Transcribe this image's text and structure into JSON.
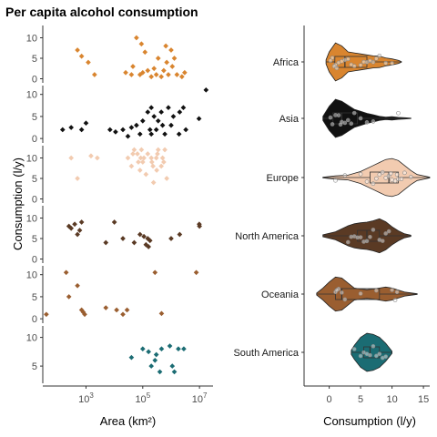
{
  "title": "Per capita alcohol consumption",
  "colors": {
    "Africa": "#D9852F",
    "Asia": "#111111",
    "Europe": "#F2CBB0",
    "North America": "#5A3A24",
    "Oceania": "#9A5E30",
    "South America": "#1B6C73"
  },
  "chart_data": [
    {
      "type": "scatter",
      "faceted_by": "continent",
      "ylabel": "Consumption (l/y)",
      "xlabel": "Area (km²)",
      "x_scale": "log10",
      "xlim": [
        30,
        30000000
      ],
      "x_ticks": [
        1000,
        100000,
        10000000
      ],
      "x_tick_labels": [
        {
          "base": "10",
          "exp": "3"
        },
        {
          "base": "10",
          "exp": "5"
        },
        {
          "base": "10",
          "exp": "7"
        }
      ],
      "panels": [
        {
          "name": "Africa",
          "ylim": [
            -1,
            13
          ],
          "y_ticks": [
            0,
            5,
            10
          ],
          "points": [
            [
              500,
              7
            ],
            [
              700,
              5.5
            ],
            [
              1200,
              4
            ],
            [
              2000,
              1
            ],
            [
              25000,
              1.5
            ],
            [
              45000,
              3
            ],
            [
              60000,
              10
            ],
            [
              80000,
              1
            ],
            [
              100000,
              1.5
            ],
            [
              120000,
              6.5
            ],
            [
              150000,
              2
            ],
            [
              200000,
              0.5
            ],
            [
              250000,
              2.5
            ],
            [
              300000,
              1
            ],
            [
              350000,
              5
            ],
            [
              450000,
              0.5
            ],
            [
              550000,
              2
            ],
            [
              650000,
              8
            ],
            [
              800000,
              1
            ],
            [
              1100000,
              3
            ],
            [
              1300000,
              5
            ],
            [
              1600000,
              1
            ],
            [
              2400000,
              0.5
            ],
            [
              3000000,
              1.5
            ],
            [
              1000000,
              7
            ],
            [
              700000,
              4
            ],
            [
              90000,
              8.5
            ],
            [
              40000,
              1
            ]
          ]
        },
        {
          "name": "Asia",
          "ylim": [
            -1,
            12
          ],
          "y_ticks": [
            0,
            5,
            10
          ],
          "points": [
            [
              150,
              2
            ],
            [
              300,
              2.5
            ],
            [
              700,
              2
            ],
            [
              1000,
              3.5
            ],
            [
              7000,
              2
            ],
            [
              11000,
              1.5
            ],
            [
              20000,
              2
            ],
            [
              30000,
              0.5
            ],
            [
              40000,
              2.5
            ],
            [
              60000,
              3
            ],
            [
              80000,
              1
            ],
            [
              100000,
              4
            ],
            [
              150000,
              6
            ],
            [
              180000,
              2
            ],
            [
              200000,
              1
            ],
            [
              250000,
              5
            ],
            [
              300000,
              2
            ],
            [
              350000,
              4
            ],
            [
              450000,
              6
            ],
            [
              500000,
              3
            ],
            [
              600000,
              1
            ],
            [
              800000,
              7
            ],
            [
              1000000,
              3
            ],
            [
              1200000,
              5
            ],
            [
              2000000,
              6
            ],
            [
              3300000,
              2
            ],
            [
              9600000,
              4.5
            ],
            [
              2700000,
              7
            ],
            [
              1900000,
              1
            ],
            [
              17000000,
              11
            ],
            [
              200000,
              7
            ]
          ]
        },
        {
          "name": "Europe",
          "ylim": [
            -1,
            13
          ],
          "y_ticks": [
            0,
            5,
            10
          ],
          "points": [
            [
              300,
              10
            ],
            [
              500,
              5
            ],
            [
              1500,
              10.5
            ],
            [
              2500,
              10
            ],
            [
              30000,
              10
            ],
            [
              40000,
              8
            ],
            [
              45000,
              11
            ],
            [
              50000,
              12
            ],
            [
              65000,
              11
            ],
            [
              70000,
              9
            ],
            [
              80000,
              7
            ],
            [
              85000,
              10
            ],
            [
              90000,
              12
            ],
            [
              100000,
              9
            ],
            [
              110000,
              10
            ],
            [
              130000,
              6
            ],
            [
              150000,
              11
            ],
            [
              200000,
              10
            ],
            [
              210000,
              9
            ],
            [
              230000,
              8
            ],
            [
              240000,
              4
            ],
            [
              300000,
              10
            ],
            [
              310000,
              7
            ],
            [
              330000,
              11
            ],
            [
              350000,
              12
            ],
            [
              450000,
              8
            ],
            [
              500000,
              10
            ],
            [
              550000,
              9
            ],
            [
              600000,
              12
            ],
            [
              700000,
              5
            ]
          ]
        },
        {
          "name": "North America",
          "ylim": [
            -1,
            13
          ],
          "y_ticks": [
            0,
            5,
            10
          ],
          "points": [
            [
              250,
              8
            ],
            [
              300,
              7.5
            ],
            [
              400,
              8.5
            ],
            [
              500,
              6
            ],
            [
              600,
              7
            ],
            [
              700,
              9
            ],
            [
              5000,
              4
            ],
            [
              10000,
              9
            ],
            [
              20000,
              5
            ],
            [
              50000,
              4
            ],
            [
              80000,
              6
            ],
            [
              110000,
              5.5
            ],
            [
              130000,
              3.5
            ],
            [
              150000,
              5
            ],
            [
              160000,
              3
            ],
            [
              180000,
              4.5
            ],
            [
              1000000,
              5
            ],
            [
              2000000,
              6
            ],
            [
              9800000,
              8.5
            ],
            [
              10000000,
              8
            ]
          ]
        },
        {
          "name": "Oceania",
          "ylim": [
            -1,
            12
          ],
          "y_ticks": [
            0,
            5,
            10
          ],
          "points": [
            [
              40,
              1
            ],
            [
              200,
              10.5
            ],
            [
              250,
              5
            ],
            [
              500,
              7.5
            ],
            [
              700,
              2
            ],
            [
              800,
              1.5
            ],
            [
              900,
              1
            ],
            [
              5000,
              2.5
            ],
            [
              12000,
              2
            ],
            [
              20000,
              1
            ],
            [
              28000,
              2
            ],
            [
              270000,
              10.5
            ],
            [
              460000,
              1.2
            ],
            [
              7700000,
              10.5
            ]
          ]
        },
        {
          "name": "South America",
          "ylim": [
            2,
            12
          ],
          "y_ticks": [
            5,
            10
          ],
          "points": [
            [
              40000,
              6.5
            ],
            [
              100000,
              8
            ],
            [
              160000,
              7.5
            ],
            [
              200000,
              5
            ],
            [
              270000,
              6
            ],
            [
              300000,
              7
            ],
            [
              400000,
              4
            ],
            [
              460000,
              8
            ],
            [
              900000,
              8.5
            ],
            [
              1100000,
              5
            ],
            [
              1300000,
              4
            ],
            [
              1800000,
              8
            ],
            [
              2800000,
              8
            ]
          ]
        }
      ]
    },
    {
      "type": "violin",
      "xlabel": "Consumption (l/y)",
      "xlim": [
        -4,
        16
      ],
      "x_ticks": [
        0,
        5,
        10,
        15
      ],
      "categories": [
        "Africa",
        "Asia",
        "Europe",
        "North America",
        "Oceania",
        "South America"
      ],
      "series": [
        {
          "name": "Africa",
          "min": -0.5,
          "q1": 0.9,
          "median": 2.5,
          "q3": 6,
          "max": 11.5,
          "density": [
            [
              -0.5,
              0.1
            ],
            [
              0,
              0.5
            ],
            [
              1,
              0.95
            ],
            [
              2,
              0.8
            ],
            [
              3,
              0.5
            ],
            [
              4,
              0.45
            ],
            [
              5,
              0.4
            ],
            [
              6,
              0.35
            ],
            [
              7,
              0.3
            ],
            [
              8,
              0.28
            ],
            [
              9,
              0.2
            ],
            [
              10,
              0.15
            ],
            [
              11,
              0.08
            ],
            [
              11.5,
              0.02
            ]
          ],
          "values": [
            0.5,
            1,
            1.5,
            2,
            3,
            4,
            5,
            5.5,
            6,
            7,
            8,
            9,
            10,
            0.2,
            0.8,
            2.5,
            6.5,
            7.5,
            1.2,
            3.5
          ]
        },
        {
          "name": "Asia",
          "min": -1,
          "q1": 0.6,
          "median": 2,
          "q3": 4.5,
          "max": 13,
          "density": [
            [
              -1,
              0.1
            ],
            [
              0,
              0.6
            ],
            [
              1,
              0.95
            ],
            [
              2,
              0.85
            ],
            [
              3,
              0.65
            ],
            [
              4,
              0.45
            ],
            [
              5,
              0.35
            ],
            [
              6,
              0.25
            ],
            [
              7,
              0.18
            ],
            [
              8,
              0.1
            ],
            [
              9,
              0.06
            ],
            [
              10,
              0.08
            ],
            [
              11,
              0.05
            ],
            [
              12,
              0.03
            ],
            [
              13,
              0.01
            ]
          ],
          "values": [
            0.5,
            1,
            1.5,
            2,
            2.5,
            3,
            4,
            5,
            6,
            7,
            11,
            0.2,
            1.8,
            3.5
          ]
        },
        {
          "name": "Europe",
          "min": -1,
          "q1": 6.5,
          "median": 9.5,
          "q3": 11,
          "max": 16,
          "density": [
            [
              -1,
              0.02
            ],
            [
              1,
              0.08
            ],
            [
              3,
              0.12
            ],
            [
              5,
              0.3
            ],
            [
              7,
              0.6
            ],
            [
              8,
              0.75
            ],
            [
              9,
              0.9
            ],
            [
              10,
              0.95
            ],
            [
              11,
              0.85
            ],
            [
              12,
              0.6
            ],
            [
              13,
              0.35
            ],
            [
              14,
              0.15
            ],
            [
              16,
              0.02
            ]
          ],
          "values": [
            1,
            2.5,
            5,
            6,
            7,
            8,
            8.5,
            9,
            9.5,
            10,
            10.5,
            11,
            11.5,
            12,
            13,
            7.5,
            9.8,
            10.8
          ]
        },
        {
          "name": "North America",
          "min": -1,
          "q1": 4.5,
          "median": 6,
          "q3": 8,
          "max": 13,
          "density": [
            [
              -1,
              0.05
            ],
            [
              1,
              0.2
            ],
            [
              3,
              0.5
            ],
            [
              4,
              0.6
            ],
            [
              5,
              0.65
            ],
            [
              6,
              0.68
            ],
            [
              7,
              0.75
            ],
            [
              8,
              0.85
            ],
            [
              9,
              0.7
            ],
            [
              10,
              0.45
            ],
            [
              11,
              0.25
            ],
            [
              12,
              0.1
            ],
            [
              13,
              0.03
            ]
          ],
          "values": [
            3.5,
            4,
            4.5,
            5,
            5.5,
            6,
            7,
            8,
            8.5,
            9,
            9.5,
            3,
            6.5
          ]
        },
        {
          "name": "Oceania",
          "min": -2,
          "q1": 1,
          "median": 2,
          "q3": 8,
          "max": 14,
          "density": [
            [
              -2,
              0.05
            ],
            [
              -1,
              0.3
            ],
            [
              0,
              0.6
            ],
            [
              1,
              0.85
            ],
            [
              2,
              0.8
            ],
            [
              3,
              0.55
            ],
            [
              4,
              0.3
            ],
            [
              5,
              0.25
            ],
            [
              6,
              0.22
            ],
            [
              7,
              0.25
            ],
            [
              8,
              0.3
            ],
            [
              9,
              0.35
            ],
            [
              10,
              0.3
            ],
            [
              11,
              0.2
            ],
            [
              12,
              0.1
            ],
            [
              14,
              0.02
            ]
          ],
          "values": [
            1,
            1.5,
            2,
            2.5,
            5,
            7.5,
            10,
            10.5,
            10.8,
            1.2
          ]
        },
        {
          "name": "South America",
          "min": 3.5,
          "q1": 5.5,
          "median": 6.5,
          "q3": 8,
          "max": 10,
          "density": [
            [
              3.5,
              0.1
            ],
            [
              4,
              0.35
            ],
            [
              5,
              0.75
            ],
            [
              6,
              0.95
            ],
            [
              7,
              0.9
            ],
            [
              8,
              0.75
            ],
            [
              9,
              0.45
            ],
            [
              10,
              0.05
            ]
          ],
          "values": [
            4,
            5,
            5.5,
            6,
            6.5,
            7,
            7.5,
            8,
            8.5,
            9
          ]
        }
      ]
    }
  ]
}
